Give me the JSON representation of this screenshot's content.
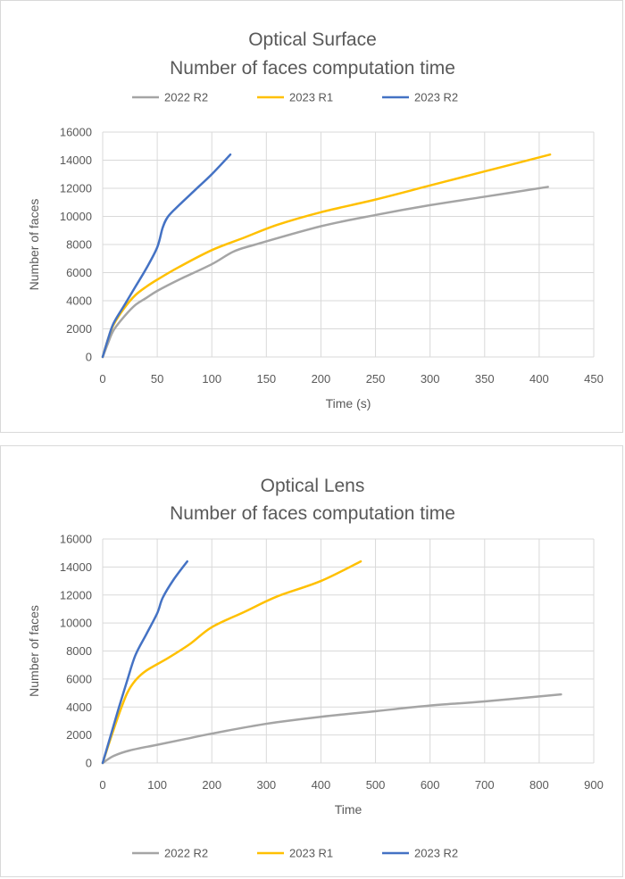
{
  "chart_data": [
    {
      "type": "line",
      "title": [
        "Optical Surface",
        "Number of faces computation time"
      ],
      "xlabel": "Time (s)",
      "ylabel": "Number of faces",
      "xlim": [
        0,
        450
      ],
      "ylim": [
        0,
        16000
      ],
      "xticks": [
        0,
        50,
        100,
        150,
        200,
        250,
        300,
        350,
        400,
        450
      ],
      "yticks": [
        0,
        2000,
        4000,
        6000,
        8000,
        10000,
        12000,
        14000,
        16000
      ],
      "grid": true,
      "legend_position": "top",
      "series": [
        {
          "name": "2022 R2",
          "color": "#a5a5a5",
          "points": [
            [
              0,
              0
            ],
            [
              5,
              1000
            ],
            [
              10,
              1900
            ],
            [
              20,
              2900
            ],
            [
              30,
              3700
            ],
            [
              40,
              4200
            ],
            [
              50,
              4700
            ],
            [
              70,
              5500
            ],
            [
              100,
              6600
            ],
            [
              120,
              7500
            ],
            [
              140,
              8000
            ],
            [
              200,
              9300
            ],
            [
              250,
              10100
            ],
            [
              300,
              10800
            ],
            [
              350,
              11400
            ],
            [
              408,
              12100
            ]
          ]
        },
        {
          "name": "2023 R1",
          "color": "#ffc000",
          "points": [
            [
              0,
              0
            ],
            [
              5,
              1300
            ],
            [
              10,
              2300
            ],
            [
              20,
              3500
            ],
            [
              30,
              4400
            ],
            [
              40,
              5000
            ],
            [
              50,
              5500
            ],
            [
              70,
              6400
            ],
            [
              100,
              7600
            ],
            [
              130,
              8500
            ],
            [
              160,
              9400
            ],
            [
              200,
              10300
            ],
            [
              250,
              11200
            ],
            [
              300,
              12200
            ],
            [
              350,
              13200
            ],
            [
              410,
              14400
            ]
          ]
        },
        {
          "name": "2023 R2",
          "color": "#4472c4",
          "points": [
            [
              0,
              0
            ],
            [
              5,
              1300
            ],
            [
              10,
              2400
            ],
            [
              20,
              3700
            ],
            [
              30,
              5000
            ],
            [
              40,
              6300
            ],
            [
              50,
              7800
            ],
            [
              55,
              9200
            ],
            [
              60,
              10000
            ],
            [
              70,
              10800
            ],
            [
              85,
              11900
            ],
            [
              100,
              13000
            ],
            [
              117,
              14400
            ]
          ]
        }
      ]
    },
    {
      "type": "line",
      "title": [
        "Optical Lens",
        "Number of faces computation time"
      ],
      "xlabel": "Time",
      "ylabel": "Number of faces",
      "xlim": [
        0,
        900
      ],
      "ylim": [
        0,
        16000
      ],
      "xticks": [
        0,
        100,
        200,
        300,
        400,
        500,
        600,
        700,
        800,
        900
      ],
      "yticks": [
        0,
        2000,
        4000,
        6000,
        8000,
        10000,
        12000,
        14000,
        16000
      ],
      "grid": true,
      "legend_position": "bottom",
      "series": [
        {
          "name": "2022 R2",
          "color": "#a5a5a5",
          "points": [
            [
              0,
              0
            ],
            [
              20,
              500
            ],
            [
              50,
              900
            ],
            [
              100,
              1300
            ],
            [
              150,
              1700
            ],
            [
              200,
              2100
            ],
            [
              300,
              2800
            ],
            [
              400,
              3300
            ],
            [
              500,
              3700
            ],
            [
              600,
              4100
            ],
            [
              700,
              4400
            ],
            [
              840,
              4900
            ]
          ]
        },
        {
          "name": "2023 R1",
          "color": "#ffc000",
          "points": [
            [
              0,
              0
            ],
            [
              15,
              1800
            ],
            [
              30,
              3500
            ],
            [
              45,
              5000
            ],
            [
              60,
              5900
            ],
            [
              80,
              6600
            ],
            [
              120,
              7500
            ],
            [
              160,
              8500
            ],
            [
              200,
              9700
            ],
            [
              260,
              10800
            ],
            [
              320,
              11900
            ],
            [
              400,
              13000
            ],
            [
              473,
              14400
            ]
          ]
        },
        {
          "name": "2023 R2",
          "color": "#4472c4",
          "points": [
            [
              0,
              0
            ],
            [
              15,
              2000
            ],
            [
              30,
              4000
            ],
            [
              45,
              5900
            ],
            [
              60,
              7700
            ],
            [
              80,
              9200
            ],
            [
              100,
              10700
            ],
            [
              110,
              11800
            ],
            [
              130,
              13100
            ],
            [
              155,
              14400
            ]
          ]
        }
      ]
    }
  ]
}
